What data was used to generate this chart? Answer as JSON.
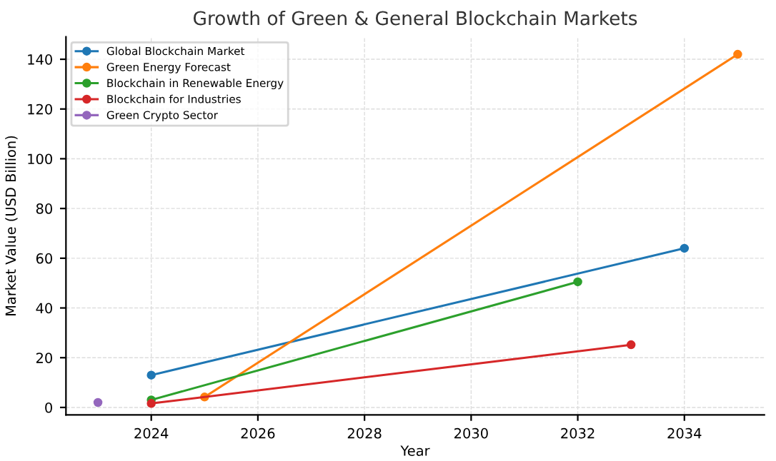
{
  "chart_data": {
    "type": "line",
    "title": "Growth of Green & General Blockchain Markets",
    "xlabel": "Year",
    "ylabel": "Market Value (USD Billion)",
    "series": [
      {
        "name": "Global Blockchain Market",
        "color": "#1f77b4",
        "x": [
          2024,
          2034
        ],
        "values": [
          13,
          64
        ]
      },
      {
        "name": "Green Energy Forecast",
        "color": "#ff7f0e",
        "x": [
          2025,
          2035
        ],
        "values": [
          4.2,
          142
        ]
      },
      {
        "name": "Blockchain in Renewable Energy",
        "color": "#2ca02c",
        "x": [
          2024,
          2032
        ],
        "values": [
          3,
          50.5
        ]
      },
      {
        "name": "Blockchain for Industries",
        "color": "#d62728",
        "x": [
          2024,
          2033
        ],
        "values": [
          1.6,
          25.2
        ]
      },
      {
        "name": "Green Crypto Sector",
        "color": "#9467bd",
        "x": [
          2023
        ],
        "values": [
          2
        ]
      }
    ],
    "xlim": [
      2022.4,
      2035.5
    ],
    "xticks": [
      2024,
      2026,
      2028,
      2030,
      2032,
      2034
    ],
    "ylim": [
      -3,
      149
    ],
    "yticks": [
      0,
      20,
      40,
      60,
      80,
      100,
      120,
      140
    ],
    "grid": true,
    "legend": "top left",
    "marker": "circle",
    "line_style": "solid"
  }
}
